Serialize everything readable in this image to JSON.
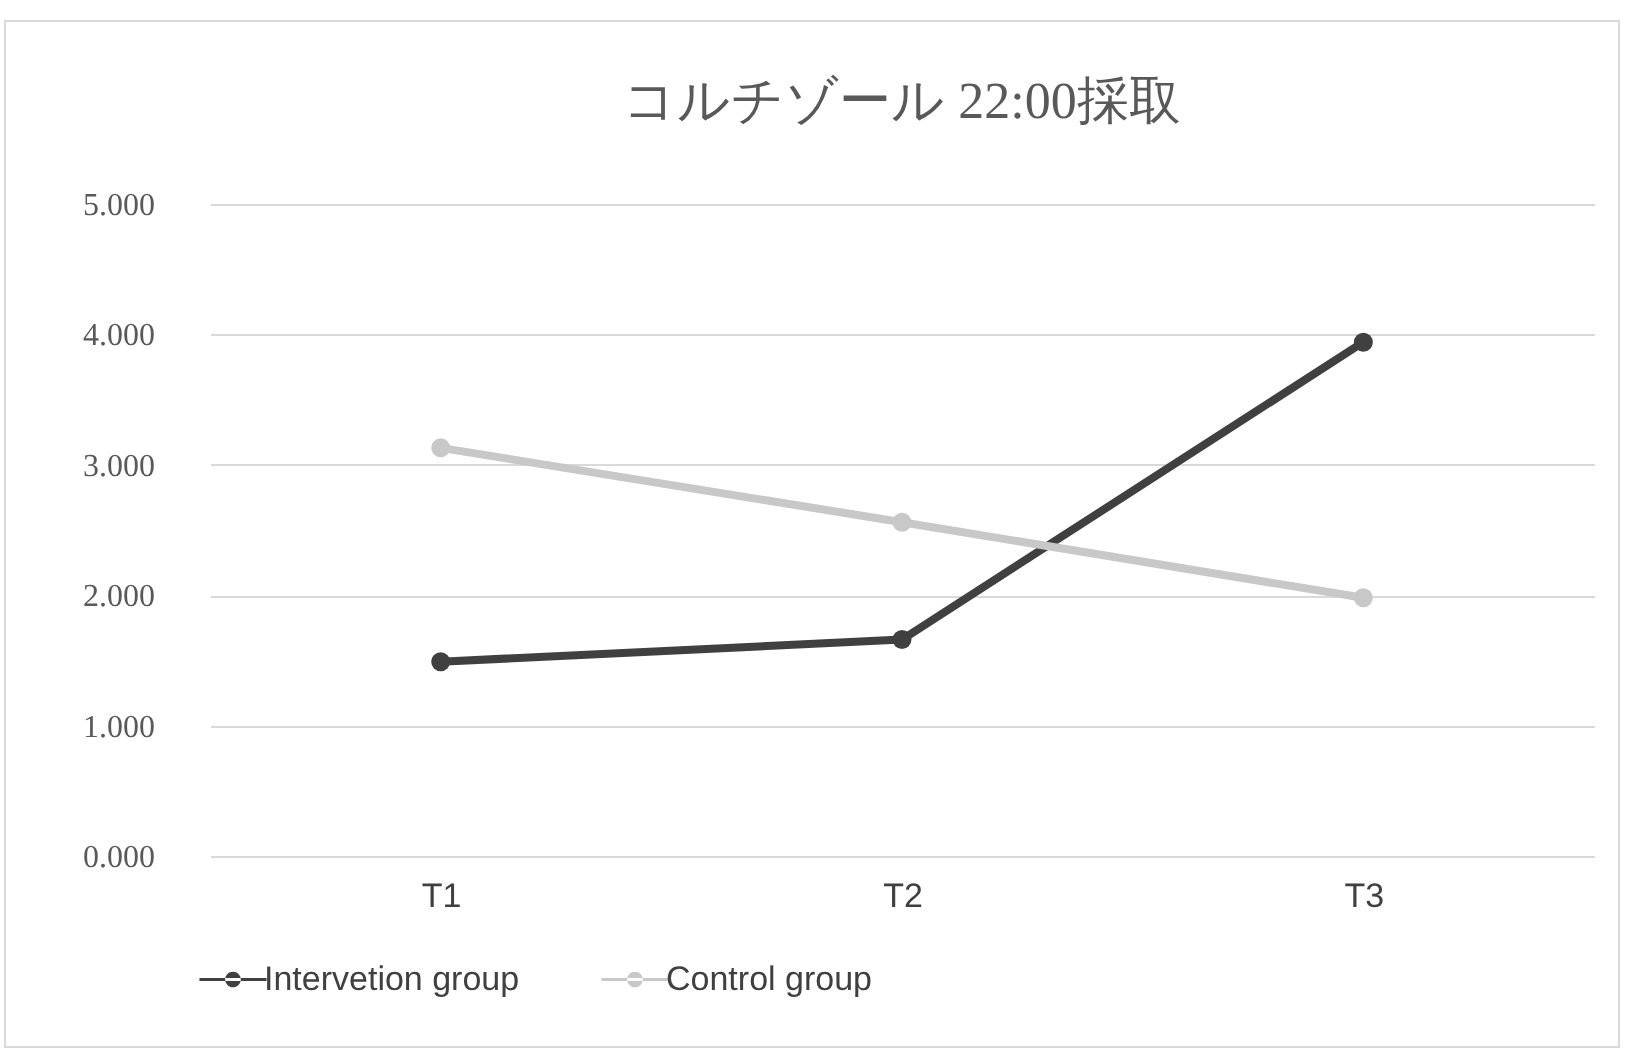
{
  "chart_data": {
    "type": "line",
    "title": "コルチゾール 22:00採取",
    "categories": [
      "T1",
      "T2",
      "T3"
    ],
    "series": [
      {
        "name": "Intervetion group",
        "color": "#404040",
        "values": [
          1.49,
          1.66,
          3.94
        ]
      },
      {
        "name": "Control group",
        "color": "#c8c8c8",
        "values": [
          3.13,
          2.56,
          1.98
        ]
      }
    ],
    "ylim": [
      0,
      5
    ],
    "yticks": [
      {
        "value": 0,
        "label": "0.000"
      },
      {
        "value": 1,
        "label": "1.000"
      },
      {
        "value": 2,
        "label": "2.000"
      },
      {
        "value": 3,
        "label": "3.000"
      },
      {
        "value": 4,
        "label": "4.000"
      },
      {
        "value": 5,
        "label": "5.000"
      }
    ],
    "grid": "y",
    "legend": "bottom",
    "marker": "circle",
    "line_style": "solid"
  }
}
